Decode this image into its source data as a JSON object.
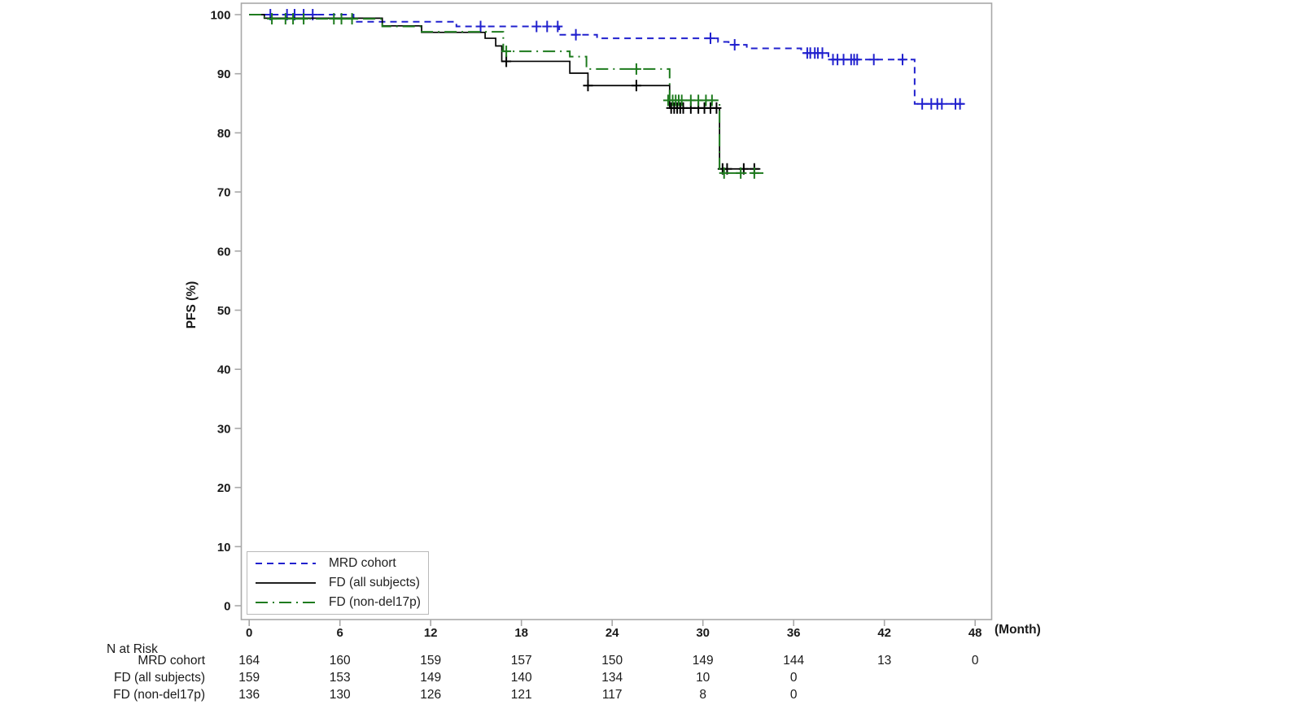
{
  "chart_data": {
    "type": "line",
    "subtype": "kaplan-meier-step",
    "title": "",
    "xlabel": "(Month)",
    "ylabel": "PFS (%)",
    "xlim": [
      0,
      48
    ],
    "ylim": [
      0,
      100
    ],
    "xticks": [
      0,
      6,
      12,
      18,
      24,
      30,
      36,
      42,
      48
    ],
    "yticks": [
      0,
      10,
      20,
      30,
      40,
      50,
      60,
      70,
      80,
      90,
      100
    ],
    "grid": false,
    "legend_position": "bottom-left-inside",
    "axis_color": "#a8a8a8",
    "text_color": "#1a1a1a",
    "series": [
      {
        "name": "MRD cohort",
        "color": "#2121ce",
        "style": "dashed",
        "steps": [
          [
            0,
            100
          ],
          [
            6.9,
            98.8
          ],
          [
            13.7,
            98.0
          ],
          [
            20.5,
            96.6
          ],
          [
            23.0,
            96.0
          ],
          [
            31.0,
            95.4
          ],
          [
            31.7,
            94.9
          ],
          [
            32.9,
            94.3
          ],
          [
            36.5,
            93.5
          ],
          [
            38.3,
            92.4
          ],
          [
            44.0,
            84.9
          ]
        ],
        "end_month": 47.3,
        "censors": [
          [
            1.4,
            100
          ],
          [
            2.5,
            100
          ],
          [
            3.0,
            100
          ],
          [
            3.6,
            100
          ],
          [
            4.2,
            100
          ],
          [
            15.3,
            98.0
          ],
          [
            19.0,
            98.0
          ],
          [
            19.7,
            98.0
          ],
          [
            20.4,
            98.0
          ],
          [
            21.6,
            96.6
          ],
          [
            30.5,
            96.0
          ],
          [
            32.1,
            94.9
          ],
          [
            36.9,
            93.5
          ],
          [
            37.1,
            93.5
          ],
          [
            37.4,
            93.5
          ],
          [
            37.6,
            93.5
          ],
          [
            37.9,
            93.5
          ],
          [
            38.6,
            92.4
          ],
          [
            38.9,
            92.4
          ],
          [
            39.3,
            92.4
          ],
          [
            39.8,
            92.4
          ],
          [
            40.0,
            92.4
          ],
          [
            40.2,
            92.4
          ],
          [
            41.3,
            92.4
          ],
          [
            43.2,
            92.4
          ],
          [
            44.5,
            84.9
          ],
          [
            45.1,
            84.9
          ],
          [
            45.5,
            84.9
          ],
          [
            45.8,
            84.9
          ],
          [
            46.7,
            84.9
          ],
          [
            47.0,
            84.9
          ]
        ]
      },
      {
        "name": "FD (all subjects)",
        "color": "#000000",
        "style": "solid",
        "steps": [
          [
            0,
            100
          ],
          [
            1.0,
            99.4
          ],
          [
            8.8,
            98.1
          ],
          [
            11.4,
            97.0
          ],
          [
            15.6,
            96.0
          ],
          [
            16.3,
            94.7
          ],
          [
            16.7,
            92.1
          ],
          [
            21.2,
            90.1
          ],
          [
            22.4,
            88.0
          ],
          [
            27.8,
            84.2
          ],
          [
            31.1,
            73.9
          ]
        ],
        "end_month": 33.8,
        "censors": [
          [
            17.0,
            92.1
          ],
          [
            22.4,
            88.0
          ],
          [
            25.6,
            88.0
          ],
          [
            27.9,
            84.2
          ],
          [
            28.1,
            84.2
          ],
          [
            28.3,
            84.2
          ],
          [
            28.5,
            84.2
          ],
          [
            28.7,
            84.2
          ],
          [
            29.2,
            84.2
          ],
          [
            29.7,
            84.2
          ],
          [
            30.1,
            84.2
          ],
          [
            30.5,
            84.2
          ],
          [
            30.9,
            84.2
          ],
          [
            31.3,
            73.9
          ],
          [
            31.6,
            73.9
          ],
          [
            32.7,
            73.9
          ],
          [
            33.4,
            73.9
          ]
        ]
      },
      {
        "name": "FD (non-del17p)",
        "color": "#1e7b1e",
        "style": "dashdot",
        "steps": [
          [
            0,
            100
          ],
          [
            1.0,
            99.3
          ],
          [
            8.8,
            98.0
          ],
          [
            11.4,
            97.1
          ],
          [
            16.8,
            93.8
          ],
          [
            21.2,
            92.9
          ],
          [
            22.3,
            90.8
          ],
          [
            27.8,
            85.5
          ],
          [
            31.1,
            73.2
          ]
        ],
        "end_month": 34.0,
        "censors": [
          [
            1.5,
            99.3
          ],
          [
            2.4,
            99.3
          ],
          [
            2.9,
            99.3
          ],
          [
            3.6,
            99.3
          ],
          [
            5.6,
            99.3
          ],
          [
            6.1,
            99.3
          ],
          [
            6.8,
            99.3
          ],
          [
            17.0,
            93.8
          ],
          [
            25.6,
            90.8
          ],
          [
            27.7,
            85.5
          ],
          [
            28.0,
            85.5
          ],
          [
            28.2,
            85.5
          ],
          [
            28.4,
            85.5
          ],
          [
            28.6,
            85.5
          ],
          [
            29.2,
            85.5
          ],
          [
            29.7,
            85.5
          ],
          [
            30.2,
            85.5
          ],
          [
            30.6,
            85.5
          ],
          [
            31.4,
            73.2
          ],
          [
            32.5,
            73.2
          ],
          [
            33.4,
            73.2
          ]
        ]
      }
    ]
  },
  "risk_table": {
    "title": "N at Risk",
    "months": [
      0,
      6,
      12,
      18,
      24,
      30,
      36,
      42,
      48
    ],
    "rows": [
      {
        "label": "MRD cohort",
        "values": [
          "164",
          "160",
          "159",
          "157",
          "150",
          "149",
          "144",
          "13",
          "0"
        ]
      },
      {
        "label": "FD (all subjects)",
        "values": [
          "159",
          "153",
          "149",
          "140",
          "134",
          "10",
          "0"
        ]
      },
      {
        "label": "FD (non-del17p)",
        "values": [
          "136",
          "130",
          "126",
          "121",
          "117",
          "8",
          "0"
        ]
      }
    ]
  }
}
